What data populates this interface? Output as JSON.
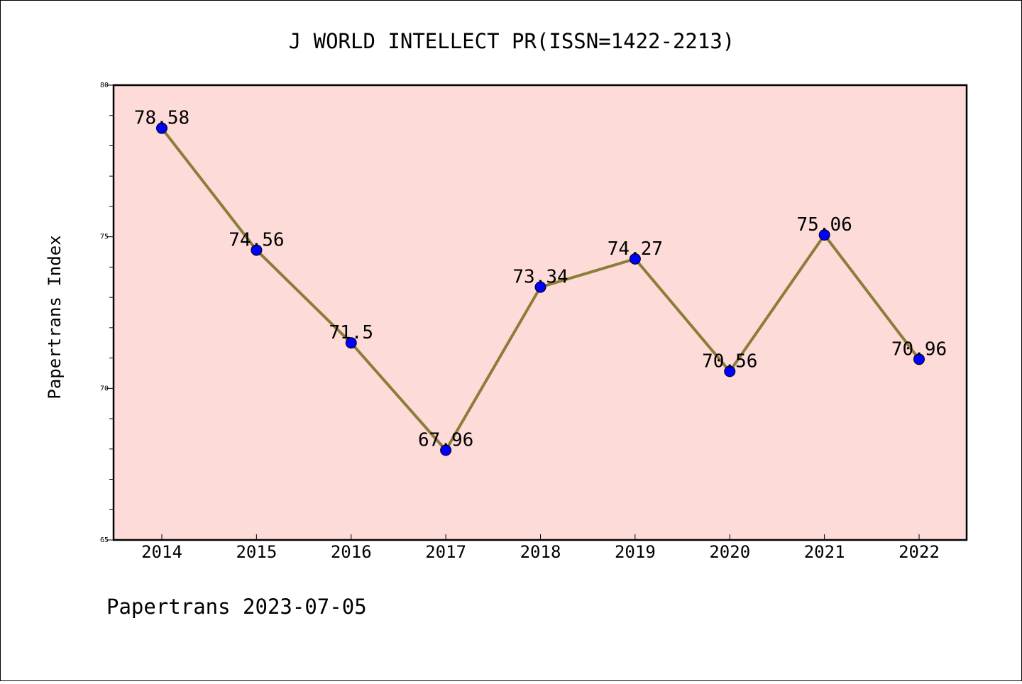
{
  "chart_data": {
    "type": "line",
    "title": "J WORLD INTELLECT PR(ISSN=1422-2213)",
    "xlabel": "",
    "ylabel": "Papertrans Index",
    "footer": "Papertrans 2023-07-05",
    "categories": [
      "2014",
      "2015",
      "2016",
      "2017",
      "2018",
      "2019",
      "2020",
      "2021",
      "2022"
    ],
    "series": [
      {
        "values": [
          78.58,
          74.56,
          71.5,
          67.96,
          73.34,
          74.27,
          70.56,
          75.06,
          70.96
        ]
      }
    ],
    "data_labels": [
      "78.58",
      "74.56",
      "71.5",
      "67.96",
      "73.34",
      "74.27",
      "70.56",
      "75.06",
      "70.96"
    ],
    "ylim": [
      65,
      80
    ],
    "yticks": [
      65,
      70,
      75,
      80
    ],
    "grid": false,
    "legend": "none",
    "colors": {
      "plot_background": "#fddbd8",
      "line": "#8b7d3a",
      "marker": "#0000ff"
    }
  }
}
